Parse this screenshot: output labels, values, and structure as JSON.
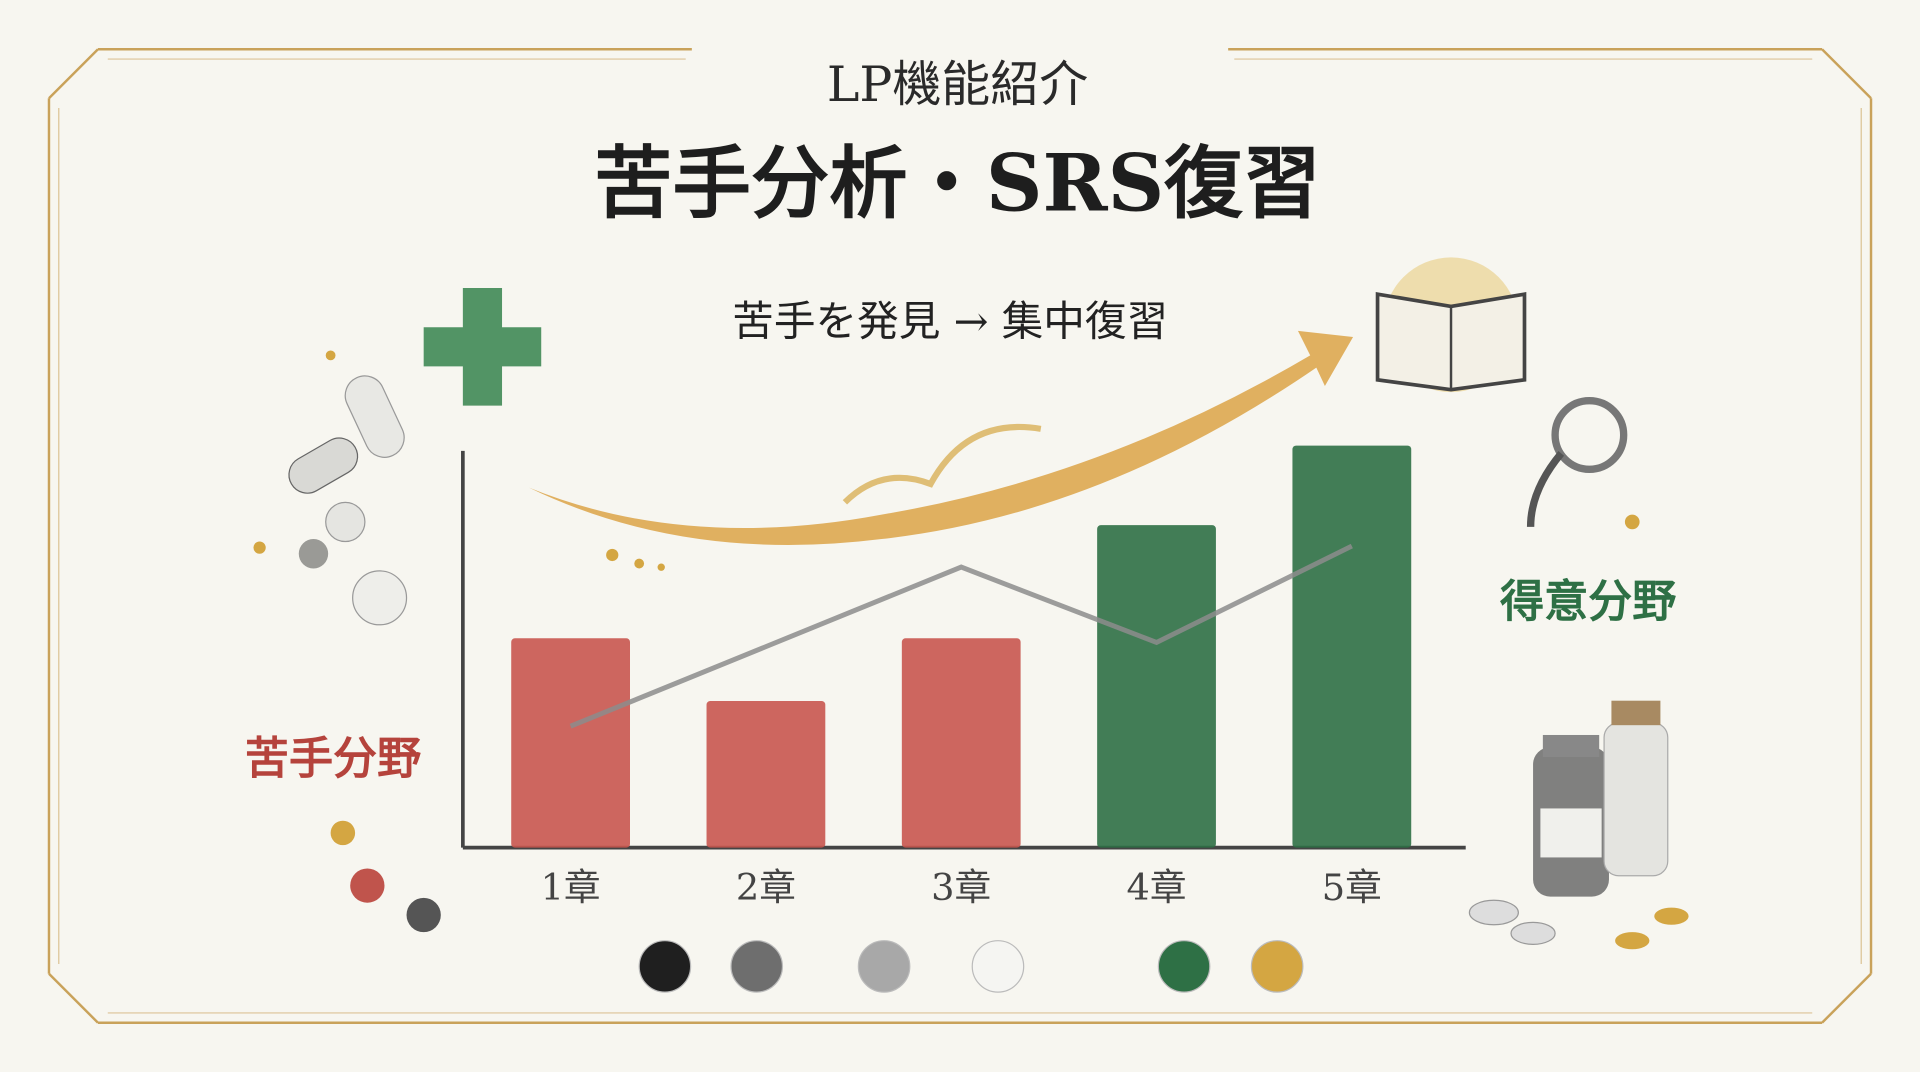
{
  "chart_data": {
    "type": "bar",
    "subtitle": "LP機能紹介",
    "title": "苦手分析・SRS復習",
    "annotations": [
      "苦手を発見 → 集中復習",
      "苦手分野",
      "得意分野"
    ],
    "categories": [
      "1章",
      "2章",
      "3章",
      "4章",
      "5章"
    ],
    "ylim": [
      0,
      100
    ],
    "series": [
      {
        "type": "bar",
        "colors": [
          "#c8574f",
          "#c8574f",
          "#c8574f",
          "#2e7045",
          "#2e7045"
        ],
        "values": [
          50,
          35,
          50,
          77,
          96
        ]
      },
      {
        "type": "line",
        "color": "#8c8c8c",
        "values": [
          29,
          48,
          67,
          49,
          72
        ]
      }
    ],
    "palette": [
      "#1f1f1f",
      "#6e6e6e",
      "#a8a8a8",
      "#f5f5f2",
      "#2e7045",
      "#d4a642"
    ]
  }
}
